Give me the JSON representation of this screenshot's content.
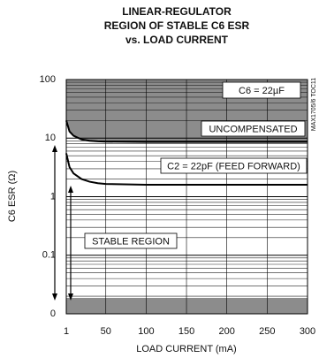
{
  "chart_data": {
    "type": "line",
    "title": [
      "LINEAR-REGULATOR",
      "REGION OF STABLE C6 ESR",
      "vs. LOAD CURRENT"
    ],
    "x_label": "LOAD CURRENT (mA)",
    "y_label": "C6 ESR (Ω)",
    "log_y": true,
    "grid": true,
    "x": [
      1,
      5,
      10,
      20,
      30,
      40,
      50,
      100,
      150,
      200,
      250,
      300
    ],
    "series": [
      {
        "name": "UNCOMPENSATED",
        "color": "#000000",
        "values": [
          20,
          13,
          11,
          9.5,
          9,
          8.8,
          8.7,
          8.6,
          8.6,
          8.6,
          8.6,
          8.6
        ]
      },
      {
        "name": "C2 = 22pF (FEED FORWARD)",
        "color": "#000000",
        "values": [
          5.5,
          3.2,
          2.5,
          2,
          1.8,
          1.7,
          1.65,
          1.6,
          1.6,
          1.6,
          1.6,
          1.6
        ]
      }
    ],
    "annotations": [
      "C6 = 22µF",
      "STABLE REGION",
      "MAX1705/6 TOC11"
    ],
    "xlim": [
      1,
      300
    ],
    "xticks": [
      1,
      50,
      100,
      150,
      200,
      250,
      300
    ],
    "ylim": [
      0.01,
      100
    ],
    "yticks": [
      {
        "value": 0.01,
        "label": "0"
      },
      0.1,
      1,
      10,
      100
    ]
  }
}
